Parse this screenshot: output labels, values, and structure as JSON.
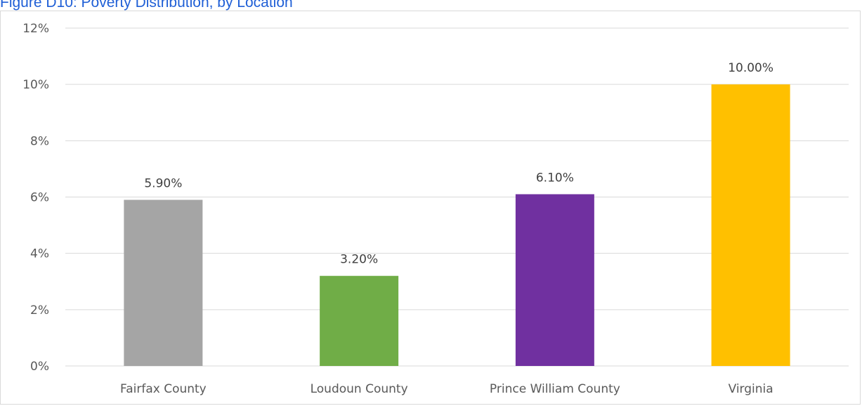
{
  "figure": {
    "title": "Figure D10: Poverty Distribution, by Location"
  },
  "chart_data": {
    "type": "bar",
    "categories": [
      "Fairfax County",
      "Loudoun County",
      "Prince William County",
      "Virginia"
    ],
    "values": [
      5.9,
      3.2,
      6.1,
      10.0
    ],
    "data_labels": [
      "5.90%",
      "3.20%",
      "6.10%",
      "10.00%"
    ],
    "colors": [
      "#A5A5A5",
      "#70AD47",
      "#7030A0",
      "#FFC000"
    ],
    "ylim": [
      0,
      12
    ],
    "yticks": [
      0,
      2,
      4,
      6,
      8,
      10,
      12
    ],
    "ytick_labels": [
      "0%",
      "2%",
      "4%",
      "6%",
      "8%",
      "10%",
      "12%"
    ],
    "grid": true,
    "gridline_color": "#D9D9D9",
    "legend": "none",
    "xlabel": "",
    "ylabel": ""
  }
}
